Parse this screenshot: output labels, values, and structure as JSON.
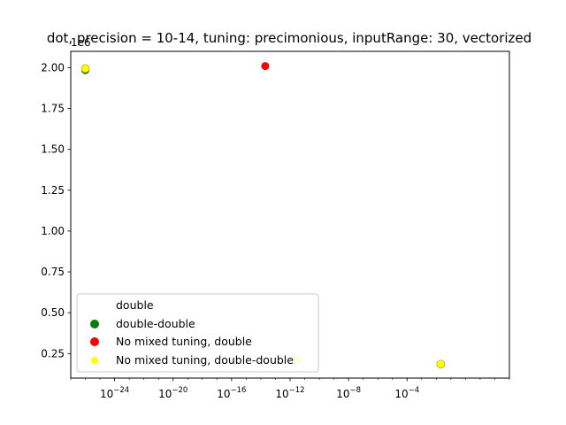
{
  "chart_data": {
    "type": "scatter",
    "title": "dot, precision = 10-14, tuning: precimonious, inputRange: 30, vectorized",
    "xlabel": "",
    "ylabel": "",
    "x_scale": "log",
    "xlim": [
      1e-27,
      1000.0
    ],
    "ylim": [
      0.1,
      2.1
    ],
    "y_offset_label": "1e6",
    "x_ticks": [
      {
        "base": "10",
        "exp": "−24",
        "value": 1e-24
      },
      {
        "base": "10",
        "exp": "−20",
        "value": 1e-20
      },
      {
        "base": "10",
        "exp": "−16",
        "value": 1e-16
      },
      {
        "base": "10",
        "exp": "−12",
        "value": 1e-12
      },
      {
        "base": "10",
        "exp": "−8",
        "value": 1e-08
      },
      {
        "base": "10",
        "exp": "−4",
        "value": 0.0001
      }
    ],
    "y_ticks": [
      "2.00",
      "1.75",
      "1.50",
      "1.25",
      "1.00",
      "0.75",
      "0.50",
      "0.25"
    ],
    "y_tick_values": [
      2.0,
      1.75,
      1.5,
      1.25,
      1.0,
      0.75,
      0.5,
      0.25
    ],
    "legend": {
      "placement": "lower-left",
      "header": "double",
      "entries": [
        {
          "label": "double-double",
          "color": "#008000"
        },
        {
          "label": "No mixed tuning, double",
          "color": "#ff0000"
        },
        {
          "label": "No mixed tuning, double-double",
          "color": "#ffff00"
        }
      ]
    },
    "series": [
      {
        "name": "double-double",
        "color": "#008000",
        "points": [
          {
            "x": 1e-26,
            "y": 1.985
          }
        ]
      },
      {
        "name": "No mixed tuning, double",
        "color": "#ff0000",
        "points": [
          {
            "x": 2e-14,
            "y": 2.01
          }
        ]
      },
      {
        "name": "No mixed tuning, double-double",
        "color": "#ffff00",
        "points": [
          {
            "x": 1e-26,
            "y": 1.995
          },
          {
            "x": 3e-12,
            "y": 0.21
          },
          {
            "x": 0.02,
            "y": 0.185
          }
        ]
      }
    ]
  }
}
